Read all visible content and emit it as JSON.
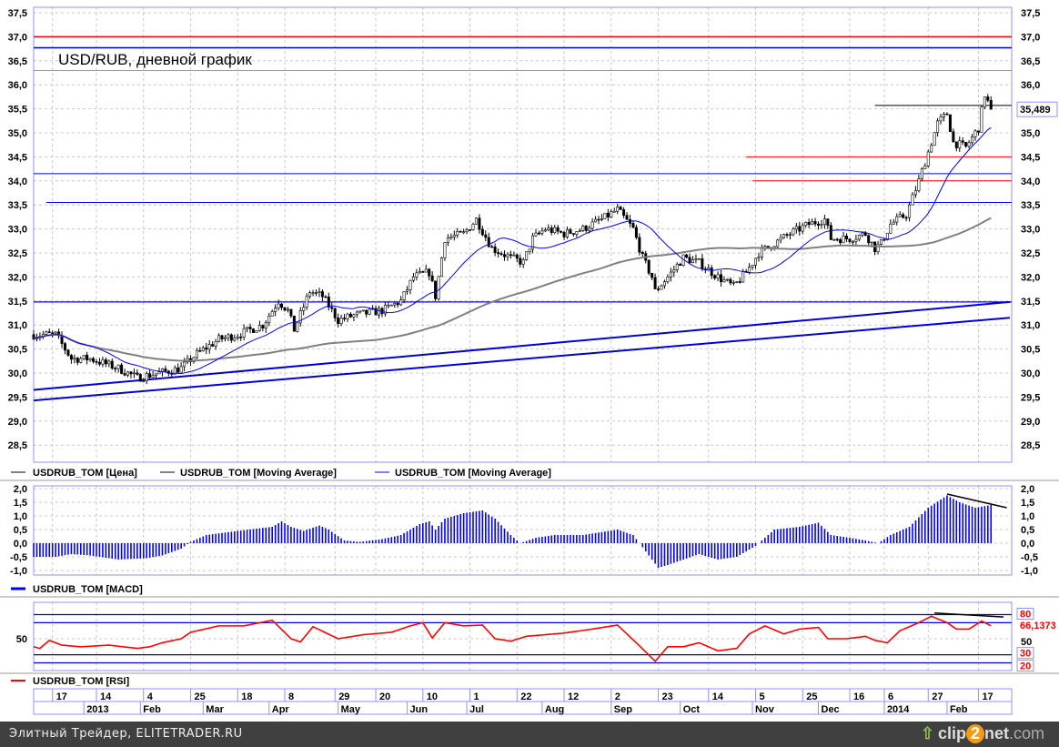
{
  "chart_data": {
    "type": "candlestick",
    "title": "USD/RUB, дневной график",
    "last_price_label": "35,489",
    "price_axis": {
      "ylim": [
        28.0,
        37.5
      ],
      "ticks": [
        "37,5",
        "37,0",
        "36,5",
        "36,0",
        "35,5",
        "35,0",
        "34,5",
        "34,0",
        "33,5",
        "33,0",
        "32,5",
        "32,0",
        "31,5",
        "31,0",
        "30,5",
        "30,0",
        "29,5",
        "29,0",
        "28,5"
      ],
      "tick_values": [
        37.5,
        37,
        36.5,
        36,
        35.5,
        35,
        34.5,
        34,
        33.5,
        33,
        32.5,
        32,
        31.5,
        31,
        30.5,
        30,
        29.5,
        29,
        28.5
      ]
    },
    "close_keyframes": [
      [
        0,
        30.8
      ],
      [
        7,
        30.8
      ],
      [
        12,
        30.3
      ],
      [
        18,
        30.3
      ],
      [
        27,
        30.1
      ],
      [
        33,
        29.9
      ],
      [
        40,
        30.0
      ],
      [
        47,
        30.1
      ],
      [
        52,
        30.4
      ],
      [
        59,
        30.7
      ],
      [
        65,
        30.8
      ],
      [
        73,
        31.0
      ],
      [
        78,
        31.5
      ],
      [
        81,
        31.3
      ],
      [
        83,
        30.9
      ],
      [
        88,
        31.7
      ],
      [
        92,
        31.6
      ],
      [
        97,
        31.1
      ],
      [
        102,
        31.2
      ],
      [
        111,
        31.3
      ],
      [
        117,
        31.5
      ],
      [
        121,
        32.0
      ],
      [
        126,
        32.1
      ],
      [
        128,
        31.6
      ],
      [
        131,
        32.8
      ],
      [
        137,
        32.9
      ],
      [
        141,
        33.2
      ],
      [
        146,
        32.6
      ],
      [
        152,
        32.4
      ],
      [
        156,
        32.3
      ],
      [
        159,
        32.8
      ],
      [
        163,
        33.0
      ],
      [
        169,
        32.9
      ],
      [
        175,
        33.0
      ],
      [
        181,
        33.2
      ],
      [
        186,
        33.4
      ],
      [
        191,
        33.0
      ],
      [
        194,
        32.4
      ],
      [
        197,
        32.0
      ],
      [
        198,
        31.7
      ],
      [
        202,
        32.0
      ],
      [
        207,
        32.4
      ],
      [
        212,
        32.3
      ],
      [
        218,
        32.0
      ],
      [
        223,
        31.8
      ],
      [
        227,
        32.1
      ],
      [
        231,
        32.5
      ],
      [
        236,
        32.7
      ],
      [
        241,
        32.9
      ],
      [
        247,
        33.1
      ],
      [
        252,
        33.2
      ],
      [
        254,
        32.8
      ],
      [
        260,
        32.8
      ],
      [
        265,
        32.9
      ],
      [
        268,
        32.6
      ],
      [
        270,
        32.7
      ],
      [
        273,
        33.1
      ],
      [
        278,
        33.3
      ],
      [
        282,
        34.0
      ],
      [
        285,
        34.6
      ],
      [
        288,
        35.2
      ],
      [
        291,
        35.4
      ],
      [
        293,
        34.8
      ],
      [
        297,
        34.7
      ],
      [
        301,
        35.1
      ],
      [
        303,
        35.8
      ],
      [
        305,
        35.489
      ]
    ],
    "last_index": 305,
    "moving_averages": [
      {
        "name": "USDRUB_TOM [Moving Average]",
        "period": 100,
        "color": "#808080"
      },
      {
        "name": "USDRUB_TOM [Moving Average]",
        "period": 20,
        "color": "#0000ff"
      }
    ],
    "levels": [
      {
        "price": 37.0,
        "from": 0,
        "color": "#ff0000",
        "width": 1.5
      },
      {
        "price": 36.77,
        "from": 0,
        "color": "#0000cc",
        "width": 1.5
      },
      {
        "price": 36.3,
        "from": 0,
        "color": "#ff4040",
        "width": 0.8
      },
      {
        "price": 35.57,
        "from": 268,
        "color": "#000000",
        "width": 1
      },
      {
        "price": 34.5,
        "from": 227,
        "color": "#ff0000",
        "width": 1
      },
      {
        "price": 34.0,
        "from": 229,
        "color": "#ff0000",
        "width": 1
      },
      {
        "price": 34.15,
        "from": 0,
        "color": "#0000ff",
        "width": 1
      },
      {
        "price": 33.55,
        "from": 4,
        "color": "#0000ff",
        "width": 1
      },
      {
        "price": 31.48,
        "from": 0,
        "color": "#0000ff",
        "width": 1.3
      }
    ],
    "trendlines": [
      {
        "from": [
          0,
          29.65
        ],
        "to": [
          311,
          31.48
        ],
        "color": "#0000dd"
      },
      {
        "from": [
          0,
          29.43
        ],
        "to": [
          311,
          31.15
        ],
        "color": "#0000dd"
      }
    ],
    "legend": [
      "USDRUB_TOM [Цена]",
      "USDRUB_TOM [Moving Average]",
      "USDRUB_TOM [Moving Average]"
    ],
    "macd": {
      "legend": "USDRUB_TOM [MACD]",
      "ticks": [
        "2,0",
        "1,5",
        "1,0",
        "0,5",
        "0,0",
        "-0,5",
        "-1,0"
      ],
      "tick_values": [
        2,
        1.5,
        1,
        0.5,
        0,
        -0.5,
        -1
      ],
      "keyframes": [
        [
          0,
          -0.5
        ],
        [
          7,
          -0.5
        ],
        [
          12,
          -0.4
        ],
        [
          18,
          -0.45
        ],
        [
          27,
          -0.6
        ],
        [
          36,
          -0.55
        ],
        [
          41,
          -0.45
        ],
        [
          47,
          -0.2
        ],
        [
          50,
          0.05
        ],
        [
          55,
          0.3
        ],
        [
          65,
          0.45
        ],
        [
          76,
          0.6
        ],
        [
          79,
          0.8
        ],
        [
          82,
          0.6
        ],
        [
          86,
          0.45
        ],
        [
          91,
          0.65
        ],
        [
          94,
          0.5
        ],
        [
          99,
          0.1
        ],
        [
          104,
          0.05
        ],
        [
          111,
          0.15
        ],
        [
          117,
          0.3
        ],
        [
          123,
          0.7
        ],
        [
          126,
          0.8
        ],
        [
          128,
          0.5
        ],
        [
          131,
          0.9
        ],
        [
          137,
          1.1
        ],
        [
          143,
          1.2
        ],
        [
          147,
          0.9
        ],
        [
          152,
          0.3
        ],
        [
          155,
          0.0
        ],
        [
          160,
          0.2
        ],
        [
          166,
          0.3
        ],
        [
          175,
          0.3
        ],
        [
          186,
          0.5
        ],
        [
          191,
          0.3
        ],
        [
          195,
          -0.3
        ],
        [
          199,
          -0.9
        ],
        [
          202,
          -0.8
        ],
        [
          207,
          -0.6
        ],
        [
          212,
          -0.4
        ],
        [
          218,
          -0.6
        ],
        [
          224,
          -0.5
        ],
        [
          230,
          -0.1
        ],
        [
          236,
          0.5
        ],
        [
          244,
          0.6
        ],
        [
          250,
          0.75
        ],
        [
          254,
          0.3
        ],
        [
          260,
          0.2
        ],
        [
          265,
          0.1
        ],
        [
          269,
          0.0
        ],
        [
          273,
          0.3
        ],
        [
          279,
          0.6
        ],
        [
          285,
          1.3
        ],
        [
          291,
          1.75
        ],
        [
          295,
          1.5
        ],
        [
          300,
          1.3
        ],
        [
          305,
          1.4
        ]
      ],
      "divergence": {
        "from": [
          291,
          1.8
        ],
        "to": [
          310,
          1.3
        ]
      },
      "color": "#0000ff"
    },
    "rsi": {
      "legend": "USDRUB_TOM [RSI]",
      "tick_label": "50",
      "levels": [
        {
          "value": 80,
          "label": "80"
        },
        {
          "value": 70,
          "label": ""
        },
        {
          "value": 30,
          "label": "30"
        },
        {
          "value": 20,
          "label": "20"
        }
      ],
      "last_value_label": "66,1373",
      "keyframes": [
        [
          0,
          40
        ],
        [
          2,
          38
        ],
        [
          5,
          48
        ],
        [
          9,
          42
        ],
        [
          15,
          40
        ],
        [
          24,
          42
        ],
        [
          33,
          38
        ],
        [
          37,
          40
        ],
        [
          41,
          45
        ],
        [
          47,
          50
        ],
        [
          50,
          58
        ],
        [
          59,
          66
        ],
        [
          67,
          66
        ],
        [
          76,
          73
        ],
        [
          82,
          50
        ],
        [
          85,
          46
        ],
        [
          89,
          65
        ],
        [
          97,
          50
        ],
        [
          105,
          55
        ],
        [
          114,
          58
        ],
        [
          120,
          66
        ],
        [
          124,
          70
        ],
        [
          127,
          51
        ],
        [
          131,
          70
        ],
        [
          137,
          66
        ],
        [
          143,
          67
        ],
        [
          147,
          50
        ],
        [
          152,
          47
        ],
        [
          157,
          53
        ],
        [
          163,
          55
        ],
        [
          169,
          57
        ],
        [
          178,
          62
        ],
        [
          186,
          67
        ],
        [
          192,
          45
        ],
        [
          198,
          22
        ],
        [
          202,
          40
        ],
        [
          207,
          40
        ],
        [
          212,
          45
        ],
        [
          218,
          35
        ],
        [
          224,
          38
        ],
        [
          228,
          56
        ],
        [
          233,
          66
        ],
        [
          239,
          56
        ],
        [
          244,
          62
        ],
        [
          250,
          64
        ],
        [
          253,
          50
        ],
        [
          259,
          50
        ],
        [
          265,
          53
        ],
        [
          268,
          48
        ],
        [
          272,
          45
        ],
        [
          276,
          60
        ],
        [
          282,
          70
        ],
        [
          286,
          78
        ],
        [
          291,
          70
        ],
        [
          294,
          62
        ],
        [
          298,
          62
        ],
        [
          302,
          72
        ],
        [
          305,
          66.1
        ]
      ],
      "divergence": {
        "from": [
          287,
          82
        ],
        "to": [
          309,
          77
        ]
      },
      "color": "#ff0000"
    },
    "x_ticks": [
      {
        "label": "17",
        "i": 6
      },
      {
        "label": "14",
        "i": 20
      },
      {
        "label": "4",
        "i": 35
      },
      {
        "label": "25",
        "i": 50
      },
      {
        "label": "18",
        "i": 65
      },
      {
        "label": "8",
        "i": 80
      },
      {
        "label": "29",
        "i": 96
      },
      {
        "label": "20",
        "i": 109
      },
      {
        "label": "10",
        "i": 124
      },
      {
        "label": "1",
        "i": 139
      },
      {
        "label": "22",
        "i": 154
      },
      {
        "label": "12",
        "i": 169
      },
      {
        "label": "2",
        "i": 184
      },
      {
        "label": "23",
        "i": 199
      },
      {
        "label": "14",
        "i": 215
      },
      {
        "label": "5",
        "i": 230
      },
      {
        "label": "25",
        "i": 245
      },
      {
        "label": "16",
        "i": 260
      },
      {
        "label": "6",
        "i": 271
      },
      {
        "label": "27",
        "i": 285
      },
      {
        "label": "17",
        "i": 301
      }
    ],
    "x_months": [
      {
        "label": "2013",
        "i": 16
      },
      {
        "label": "Feb",
        "i": 34
      },
      {
        "label": "Mar",
        "i": 54
      },
      {
        "label": "Apr",
        "i": 75
      },
      {
        "label": "May",
        "i": 97
      },
      {
        "label": "Jun",
        "i": 119
      },
      {
        "label": "Jul",
        "i": 138
      },
      {
        "label": "Aug",
        "i": 162
      },
      {
        "label": "Sep",
        "i": 184
      },
      {
        "label": "Oct",
        "i": 206
      },
      {
        "label": "Nov",
        "i": 229
      },
      {
        "label": "Dec",
        "i": 250
      },
      {
        "label": "2014",
        "i": 271
      },
      {
        "label": "Feb",
        "i": 291
      }
    ]
  },
  "footer": {
    "credit": "Элитный Трейдер, ELITETRADER.RU",
    "logo_a": "clip",
    "logo_b": "2",
    "logo_c": "net",
    "logo_d": ".com"
  }
}
